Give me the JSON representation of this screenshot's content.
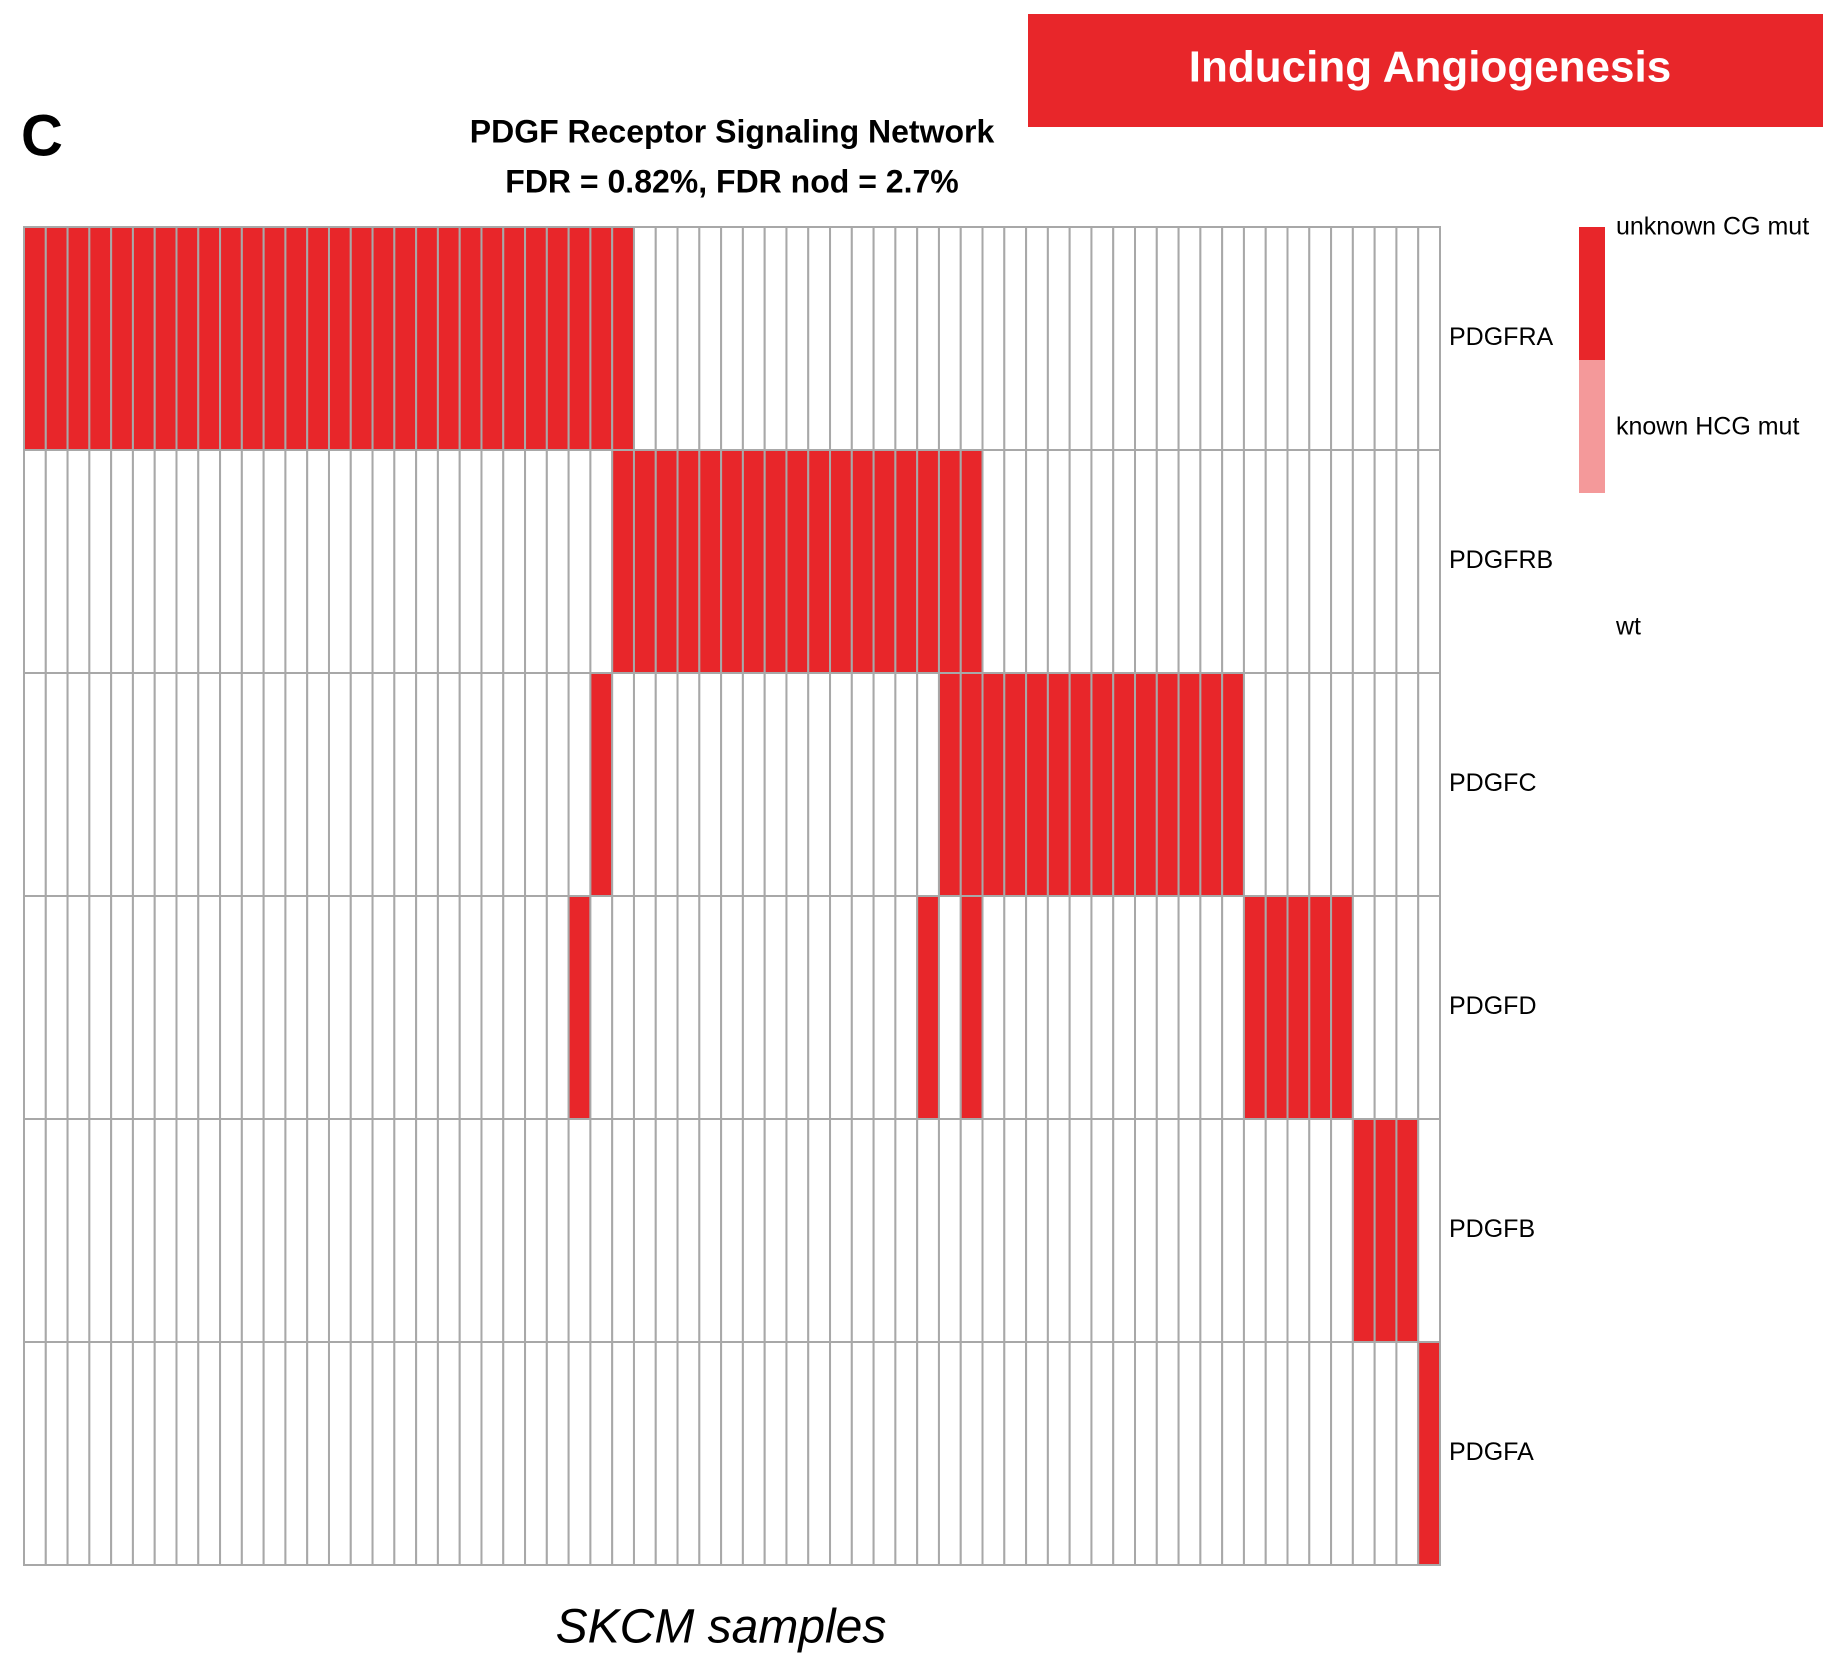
{
  "header": "Inducing Angiogenesis",
  "panel_label": "C",
  "chart_data": {
    "type": "heatmap",
    "title": "PDGF Receptor Signaling Network",
    "subtitle": "FDR = 0.82%, FDR nod = 2.7%",
    "x_label": "SKCM samples",
    "legend": [
      {
        "label": "unknown CG mut",
        "color": "#e8262a"
      },
      {
        "label": "known HCG mut",
        "color": "#f4999a"
      },
      {
        "label": "wt",
        "color": "#ffffff"
      }
    ],
    "rows": [
      {
        "name": "PDGFRA",
        "values": [
          0,
          0,
          0,
          0,
          0,
          0,
          0,
          0,
          0,
          0,
          0,
          0,
          0,
          0,
          0,
          0,
          0,
          0,
          0,
          0,
          0,
          0,
          0,
          0,
          0,
          0,
          0,
          0,
          2,
          2,
          2,
          2,
          2,
          2,
          2,
          2,
          2,
          2,
          2,
          2,
          2,
          2,
          2,
          2,
          2,
          2,
          2,
          2,
          2,
          2,
          2,
          2,
          2,
          2,
          2,
          2,
          2,
          2,
          2,
          2,
          2,
          2,
          2,
          2,
          2
        ]
      },
      {
        "name": "PDGFRB",
        "values": [
          2,
          2,
          2,
          2,
          2,
          2,
          2,
          2,
          2,
          2,
          2,
          2,
          2,
          2,
          2,
          2,
          2,
          2,
          2,
          2,
          2,
          2,
          2,
          2,
          2,
          2,
          2,
          0,
          0,
          0,
          0,
          0,
          0,
          0,
          0,
          0,
          0,
          0,
          0,
          0,
          0,
          0,
          0,
          0,
          2,
          2,
          2,
          2,
          2,
          2,
          2,
          2,
          2,
          2,
          2,
          2,
          2,
          2,
          2,
          2,
          2,
          2,
          2,
          2,
          2
        ]
      },
      {
        "name": "PDGFC",
        "values": [
          2,
          2,
          2,
          2,
          2,
          2,
          2,
          2,
          2,
          2,
          2,
          2,
          2,
          2,
          2,
          2,
          2,
          2,
          2,
          2,
          2,
          2,
          2,
          2,
          2,
          2,
          0,
          2,
          2,
          2,
          2,
          2,
          2,
          2,
          2,
          2,
          2,
          2,
          2,
          2,
          2,
          2,
          0,
          0,
          0,
          0,
          0,
          0,
          0,
          0,
          0,
          0,
          0,
          0,
          0,
          0,
          2,
          2,
          2,
          2,
          2,
          2,
          2,
          2,
          2
        ]
      },
      {
        "name": "PDGFD",
        "values": [
          2,
          2,
          2,
          2,
          2,
          2,
          2,
          2,
          2,
          2,
          2,
          2,
          2,
          2,
          2,
          2,
          2,
          2,
          2,
          2,
          2,
          2,
          2,
          2,
          2,
          0,
          2,
          2,
          2,
          2,
          2,
          2,
          2,
          2,
          2,
          2,
          2,
          2,
          2,
          2,
          2,
          0,
          2,
          0,
          2,
          2,
          2,
          2,
          2,
          2,
          2,
          2,
          2,
          2,
          2,
          2,
          0,
          0,
          0,
          0,
          0,
          2,
          2,
          2,
          2
        ]
      },
      {
        "name": "PDGFB",
        "values": [
          2,
          2,
          2,
          2,
          2,
          2,
          2,
          2,
          2,
          2,
          2,
          2,
          2,
          2,
          2,
          2,
          2,
          2,
          2,
          2,
          2,
          2,
          2,
          2,
          2,
          2,
          2,
          2,
          2,
          2,
          2,
          2,
          2,
          2,
          2,
          2,
          2,
          2,
          2,
          2,
          2,
          2,
          2,
          2,
          2,
          2,
          2,
          2,
          2,
          2,
          2,
          2,
          2,
          2,
          2,
          2,
          2,
          2,
          2,
          2,
          2,
          0,
          0,
          0,
          2
        ]
      },
      {
        "name": "PDGFA",
        "values": [
          2,
          2,
          2,
          2,
          2,
          2,
          2,
          2,
          2,
          2,
          2,
          2,
          2,
          2,
          2,
          2,
          2,
          2,
          2,
          2,
          2,
          2,
          2,
          2,
          2,
          2,
          2,
          2,
          2,
          2,
          2,
          2,
          2,
          2,
          2,
          2,
          2,
          2,
          2,
          2,
          2,
          2,
          2,
          2,
          2,
          2,
          2,
          2,
          2,
          2,
          2,
          2,
          2,
          2,
          2,
          2,
          2,
          2,
          2,
          2,
          2,
          2,
          2,
          2,
          0
        ]
      }
    ]
  }
}
